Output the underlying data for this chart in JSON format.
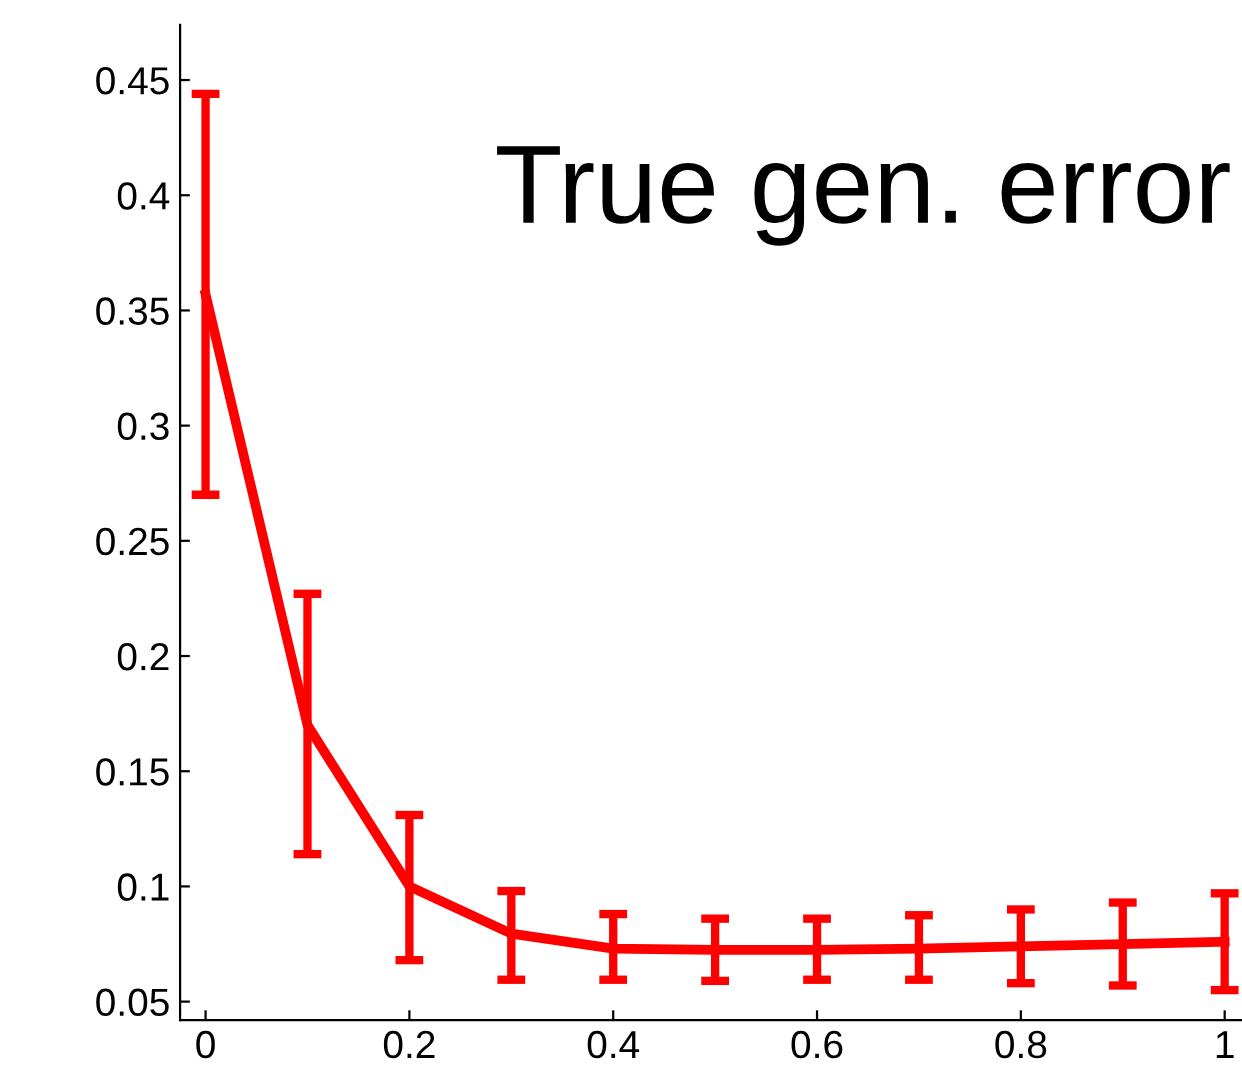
{
  "chart_data": {
    "type": "line",
    "x": [
      0,
      0.1,
      0.2,
      0.3,
      0.4,
      0.5,
      0.6,
      0.7,
      0.8,
      0.9,
      1
    ],
    "series": [
      {
        "color": "#ff0000",
        "values": [
          0.357,
          0.17,
          0.1,
          0.0795,
          0.073,
          0.0725,
          0.0725,
          0.073,
          0.074,
          0.075,
          0.076
        ],
        "errors": [
          [
            0.27,
            0.444
          ],
          [
            0.114,
            0.227
          ],
          [
            0.068,
            0.131
          ],
          [
            0.0595,
            0.098
          ],
          [
            0.0595,
            0.088
          ],
          [
            0.059,
            0.086
          ],
          [
            0.0595,
            0.086
          ],
          [
            0.0595,
            0.0875
          ],
          [
            0.058,
            0.09
          ],
          [
            0.057,
            0.093
          ],
          [
            0.055,
            0.097
          ]
        ]
      }
    ],
    "annotations": [
      "True gen. error"
    ],
    "xlim": [
      -0.025,
      1.017
    ],
    "ylim": [
      0.042,
      0.474
    ],
    "xticks": [
      0,
      0.2,
      0.4,
      0.6,
      0.8,
      1
    ],
    "yticks": [
      0.05,
      0.1,
      0.15,
      0.2,
      0.25,
      0.3,
      0.35,
      0.4,
      0.45
    ],
    "grid": false,
    "legend": false,
    "marker": "none",
    "line_style": "solid"
  }
}
